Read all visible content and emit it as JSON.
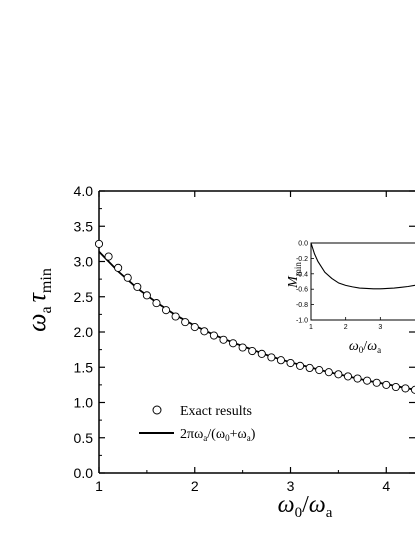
{
  "chart_data": [
    {
      "type": "scatter",
      "title": "",
      "xlabel": {
        "var": "ω",
        "sub": "0",
        "sep": "/",
        "var2": "ω",
        "sub2": "a"
      },
      "ylabel": {
        "var": "ω",
        "sub": "a",
        "var2": "τ",
        "sub2": "min"
      },
      "xlim": [
        1,
        4.3
      ],
      "ylim": [
        0,
        4
      ],
      "xticks": [
        "1",
        "2",
        "3",
        "4"
      ],
      "yticks": [
        "0.0",
        "0.5",
        "1.0",
        "1.5",
        "2.0",
        "2.5",
        "3.0",
        "3.5",
        "4.0"
      ],
      "legend": {
        "position": "lower-left"
      },
      "series": [
        {
          "name": "Exact results",
          "marker": "open-circle",
          "x": [
            1.0,
            1.1,
            1.2,
            1.3,
            1.4,
            1.5,
            1.6,
            1.7,
            1.8,
            1.9,
            2.0,
            2.1,
            2.2,
            2.3,
            2.4,
            2.5,
            2.6,
            2.7,
            2.8,
            2.9,
            3.0,
            3.1,
            3.2,
            3.3,
            3.4,
            3.5,
            3.6,
            3.7,
            3.8,
            3.9,
            4.0,
            4.1,
            4.2,
            4.3
          ],
          "y": [
            3.25,
            3.07,
            2.91,
            2.77,
            2.64,
            2.52,
            2.41,
            2.31,
            2.22,
            2.14,
            2.07,
            2.01,
            1.95,
            1.89,
            1.84,
            1.78,
            1.73,
            1.69,
            1.64,
            1.6,
            1.56,
            1.52,
            1.49,
            1.46,
            1.43,
            1.4,
            1.37,
            1.34,
            1.31,
            1.28,
            1.25,
            1.22,
            1.2,
            1.18
          ]
        },
        {
          "name": "2πω_a/(ω_0+ω_a)",
          "label_parts": {
            "pre": "2πω",
            "s1": "a",
            "mid1": "/(ω",
            "s2": "0",
            "mid2": "+ω",
            "s3": "a",
            "post": ")"
          },
          "style": "solid-line",
          "x": [
            1.0,
            1.2,
            1.4,
            1.6,
            1.8,
            2.0,
            2.2,
            2.4,
            2.6,
            2.8,
            3.0,
            3.2,
            3.4,
            3.6,
            3.8,
            4.0,
            4.3
          ],
          "y": [
            3.14,
            2.86,
            2.62,
            2.42,
            2.24,
            2.09,
            1.96,
            1.85,
            1.75,
            1.65,
            1.57,
            1.5,
            1.43,
            1.37,
            1.31,
            1.26,
            1.18
          ]
        }
      ]
    },
    {
      "type": "line",
      "title": "",
      "xlabel": {
        "var": "ω",
        "sub": "0",
        "sep": "/",
        "var2": "ω",
        "sub2": "a"
      },
      "ylabel": {
        "var": "M",
        "sub": "min"
      },
      "xlim": [
        1,
        4.0
      ],
      "ylim": [
        -1.0,
        0.0
      ],
      "xticks": [
        "1",
        "2",
        "3"
      ],
      "yticks": [
        "0.0",
        "-0.2",
        "-0.4",
        "-0.6",
        "-0.8",
        "-1.0"
      ],
      "series": [
        {
          "x": [
            1.0,
            1.1,
            1.2,
            1.4,
            1.6,
            1.8,
            2.0,
            2.2,
            2.4,
            2.6,
            2.8,
            3.0,
            3.2,
            3.4,
            3.6,
            3.8,
            4.0
          ],
          "y": [
            0.0,
            -0.14,
            -0.24,
            -0.38,
            -0.46,
            -0.52,
            -0.55,
            -0.57,
            -0.585,
            -0.59,
            -0.595,
            -0.595,
            -0.59,
            -0.585,
            -0.575,
            -0.565,
            -0.55
          ]
        }
      ]
    }
  ]
}
